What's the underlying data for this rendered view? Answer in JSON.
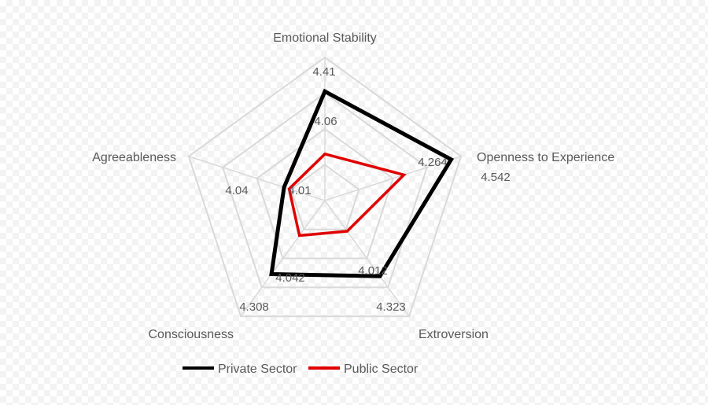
{
  "chart_data": {
    "type": "radar",
    "categories": [
      "Emotional Stability",
      "Openness to Experience",
      "Extroversion",
      "Consciousness",
      "Agreeableness"
    ],
    "series": [
      {
        "name": "Private Sector",
        "values": [
          4.41,
          4.542,
          4.323,
          4.308,
          4.04
        ],
        "labels": [
          "4.41",
          "4.542",
          "4.323",
          "4.308",
          "4.04"
        ],
        "color": "#000000"
      },
      {
        "name": "Public Sector",
        "values": [
          4.06,
          4.264,
          4.012,
          4.042,
          4.01
        ],
        "labels": [
          "4.06",
          "4.264",
          "4.012",
          "4.042",
          "4.01"
        ],
        "color": "#e00000"
      }
    ],
    "rlim": [
      3.8,
      4.6
    ],
    "grid": true,
    "legend": "bottom"
  }
}
